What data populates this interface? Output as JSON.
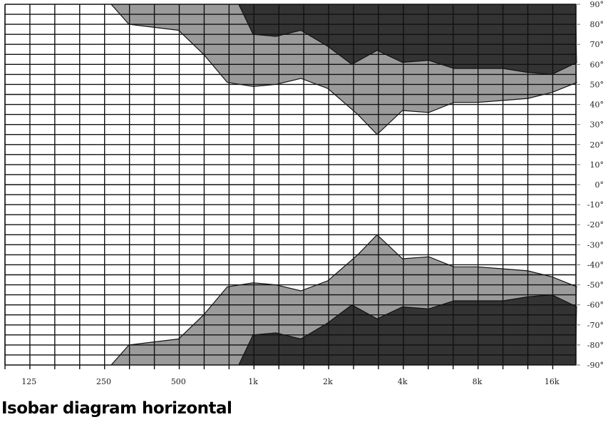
{
  "chart_data": {
    "type": "area",
    "title": "Isobar diagram horizontal",
    "xscale": "log",
    "xlim": [
      100,
      20000
    ],
    "ylim": [
      -90,
      90
    ],
    "x_ticks": [
      {
        "value": 125,
        "label": "125"
      },
      {
        "value": 250,
        "label": "250"
      },
      {
        "value": 500,
        "label": "500"
      },
      {
        "value": 1000,
        "label": "1k"
      },
      {
        "value": 2000,
        "label": "2k"
      },
      {
        "value": 4000,
        "label": "4k"
      },
      {
        "value": 8000,
        "label": "8k"
      },
      {
        "value": 16000,
        "label": "16k"
      }
    ],
    "y_ticks": [
      {
        "value": 90,
        "label": "90°"
      },
      {
        "value": 80,
        "label": "80°"
      },
      {
        "value": 70,
        "label": "70°"
      },
      {
        "value": 60,
        "label": "60°"
      },
      {
        "value": 50,
        "label": "50°"
      },
      {
        "value": 40,
        "label": "40°"
      },
      {
        "value": 30,
        "label": "30°"
      },
      {
        "value": 20,
        "label": "20°"
      },
      {
        "value": 10,
        "label": "10°"
      },
      {
        "value": 0,
        "label": "0°"
      },
      {
        "value": -10,
        "label": "-10°"
      },
      {
        "value": -20,
        "label": "-20°"
      },
      {
        "value": -30,
        "label": "-30°"
      },
      {
        "value": -40,
        "label": "-40°"
      },
      {
        "value": -50,
        "label": "-50°"
      },
      {
        "value": -60,
        "label": "-60°"
      },
      {
        "value": -70,
        "label": "-70°"
      },
      {
        "value": -80,
        "label": "-80°"
      },
      {
        "value": -90,
        "label": "-90°"
      }
    ],
    "grid": true,
    "colors": {
      "light_band": "#9b9b9b",
      "dark_band": "#333333",
      "background": "#ffffff",
      "grid": "#111111"
    },
    "series": [
      {
        "band": "light",
        "side": "upper",
        "x": [
          268,
          316,
          501,
          632,
          787,
          1000,
          1236,
          1558,
          2000,
          2641,
          3158,
          4000,
          5106,
          6445,
          8000,
          10173,
          12800,
          16000,
          20200
        ],
        "y": [
          90,
          80,
          77,
          65,
          51,
          49,
          50,
          53,
          48,
          35,
          25,
          37,
          36,
          41,
          41,
          42,
          43,
          46,
          51
        ]
      },
      {
        "band": "dark",
        "side": "upper",
        "x": [
          875,
          1000,
          1236,
          1558,
          2000,
          2500,
          3158,
          4000,
          5106,
          6445,
          8000,
          10173,
          12800,
          16000,
          20200
        ],
        "y": [
          90,
          75,
          74,
          77,
          69,
          60,
          67,
          61,
          62,
          58,
          58,
          58,
          56,
          55,
          61
        ]
      },
      {
        "band": "light",
        "side": "lower",
        "x": [
          268,
          316,
          501,
          632,
          787,
          1000,
          1236,
          1558,
          2000,
          2641,
          3158,
          4000,
          5106,
          6445,
          8000,
          10173,
          12800,
          16000,
          20200
        ],
        "y": [
          -90,
          -80,
          -77,
          -65,
          -51,
          -49,
          -50,
          -53,
          -48,
          -35,
          -25,
          -37,
          -36,
          -41,
          -41,
          -42,
          -43,
          -46,
          -51
        ]
      },
      {
        "band": "dark",
        "side": "lower",
        "x": [
          875,
          1000,
          1236,
          1558,
          2000,
          2500,
          3158,
          4000,
          5106,
          6445,
          8000,
          10173,
          12800,
          16000,
          20200
        ],
        "y": [
          -90,
          -75,
          -74,
          -77,
          -69,
          -60,
          -67,
          -61,
          -62,
          -58,
          -58,
          -58,
          -56,
          -55,
          -61
        ]
      }
    ]
  }
}
